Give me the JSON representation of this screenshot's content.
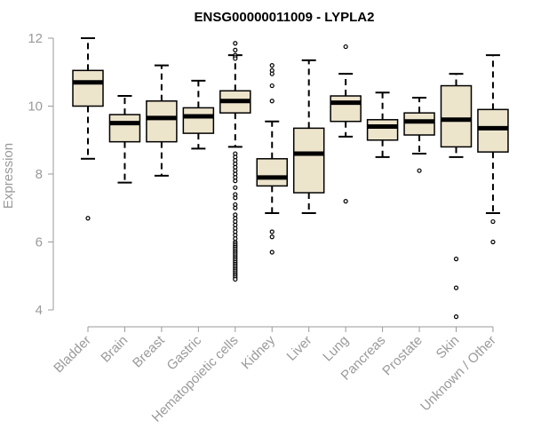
{
  "chart_data": {
    "type": "boxplot",
    "title": "ENSG00000011009 - LYPLA2",
    "xlabel": "",
    "ylabel": "Expression",
    "ylim": [
      3.6,
      12.2
    ],
    "yticks": [
      4,
      6,
      8,
      10,
      12
    ],
    "grid": false,
    "box_fill": "#ede4cc",
    "box_stroke": "#000000",
    "axis_color": "#9a9a9a",
    "categories": [
      "Bladder",
      "Brain",
      "Breast",
      "Gastric",
      "Hematopoietic cells",
      "Kidney",
      "Liver",
      "Lung",
      "Pancreas",
      "Prostate",
      "Skin",
      "Unknown / Other"
    ],
    "boxes": [
      {
        "name": "Bladder",
        "lower_whisker": 8.45,
        "q1": 10.0,
        "median": 10.7,
        "q3": 11.05,
        "upper_whisker": 12.0,
        "outliers": [
          6.7
        ]
      },
      {
        "name": "Brain",
        "lower_whisker": 7.75,
        "q1": 8.95,
        "median": 9.5,
        "q3": 9.75,
        "upper_whisker": 10.3,
        "outliers": []
      },
      {
        "name": "Breast",
        "lower_whisker": 7.95,
        "q1": 8.95,
        "median": 9.65,
        "q3": 10.15,
        "upper_whisker": 11.2,
        "outliers": []
      },
      {
        "name": "Gastric",
        "lower_whisker": 8.75,
        "q1": 9.2,
        "median": 9.7,
        "q3": 9.95,
        "upper_whisker": 10.75,
        "outliers": []
      },
      {
        "name": "Hematopoietic cells",
        "lower_whisker": 8.8,
        "q1": 9.8,
        "median": 10.15,
        "q3": 10.45,
        "upper_whisker": 11.5,
        "outliers": [
          11.85,
          11.65,
          11.5,
          11.45,
          11.4,
          8.6,
          8.5,
          8.4,
          8.3,
          8.2,
          8.1,
          8.0,
          7.9,
          7.8,
          7.6,
          7.4,
          7.3,
          7.1,
          7.0,
          6.8,
          6.7,
          6.6,
          6.5,
          6.4,
          6.3,
          6.2,
          6.1,
          6.0,
          5.95,
          5.9,
          5.85,
          5.8,
          5.75,
          5.7,
          5.65,
          5.6,
          5.55,
          5.5,
          5.45,
          5.4,
          5.35,
          5.3,
          5.25,
          5.2,
          5.15,
          5.1,
          5.05,
          5.0,
          4.95,
          4.9
        ]
      },
      {
        "name": "Kidney",
        "lower_whisker": 6.85,
        "q1": 7.65,
        "median": 7.9,
        "q3": 8.45,
        "upper_whisker": 9.55,
        "outliers": [
          11.2,
          11.05,
          10.95,
          10.6,
          10.15,
          6.3,
          6.15,
          5.7
        ]
      },
      {
        "name": "Liver",
        "lower_whisker": 6.85,
        "q1": 7.45,
        "median": 8.6,
        "q3": 9.35,
        "upper_whisker": 11.35,
        "outliers": []
      },
      {
        "name": "Lung",
        "lower_whisker": 9.1,
        "q1": 9.55,
        "median": 10.1,
        "q3": 10.3,
        "upper_whisker": 10.95,
        "outliers": [
          11.75,
          7.2
        ]
      },
      {
        "name": "Pancreas",
        "lower_whisker": 8.5,
        "q1": 9.0,
        "median": 9.4,
        "q3": 9.6,
        "upper_whisker": 10.4,
        "outliers": []
      },
      {
        "name": "Prostate",
        "lower_whisker": 8.6,
        "q1": 9.15,
        "median": 9.55,
        "q3": 9.8,
        "upper_whisker": 10.25,
        "outliers": [
          8.1
        ]
      },
      {
        "name": "Skin",
        "lower_whisker": 8.5,
        "q1": 8.8,
        "median": 9.6,
        "q3": 10.6,
        "upper_whisker": 10.95,
        "outliers": [
          5.5,
          4.65,
          3.8
        ]
      },
      {
        "name": "Unknown / Other",
        "lower_whisker": 6.85,
        "q1": 8.65,
        "median": 9.35,
        "q3": 9.9,
        "upper_whisker": 11.5,
        "outliers": [
          6.6,
          6.0
        ]
      }
    ]
  }
}
